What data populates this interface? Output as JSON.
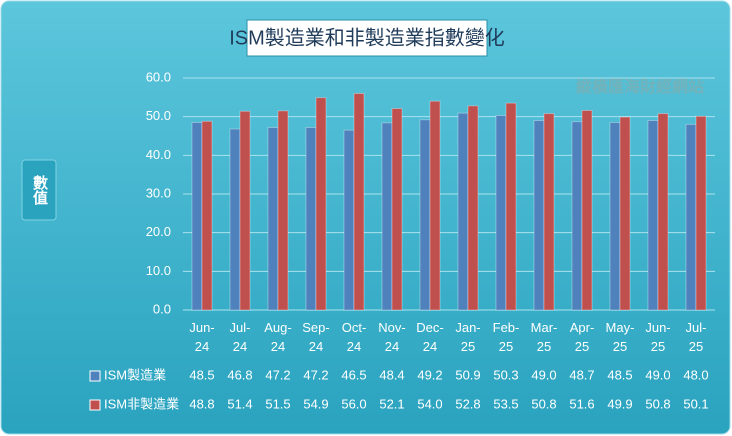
{
  "chart_data": {
    "type": "bar",
    "title": "ISM製造業和非製造業指數變化",
    "y_label": "數值",
    "watermark": "縱橫匯海財經網站",
    "categories": [
      "Jun-24",
      "Jul-24",
      "Aug-24",
      "Sep-24",
      "Oct-24",
      "Nov-24",
      "Dec-24",
      "Jan-25",
      "Feb-25",
      "Mar-25",
      "Apr-25",
      "May-25",
      "Jun-25",
      "Jul-25"
    ],
    "series": [
      {
        "name": "ISM製造業",
        "color": "#4f81bd",
        "values": [
          48.5,
          46.8,
          47.2,
          47.2,
          46.5,
          48.4,
          49.2,
          50.9,
          50.3,
          49.0,
          48.7,
          48.5,
          49.0,
          48.0
        ],
        "value_labels": [
          "48.5",
          "46.8",
          "47.2",
          "47.2",
          "46.5",
          "48.4",
          "49.2",
          "50.9",
          "50.3",
          "49.0",
          "48.7",
          "48.5",
          "49.0",
          "48.0"
        ]
      },
      {
        "name": "ISM非製造業",
        "color": "#c0504d",
        "values": [
          48.8,
          51.4,
          51.5,
          54.9,
          56.0,
          52.1,
          54.0,
          52.8,
          53.5,
          50.8,
          51.6,
          49.9,
          50.8,
          50.1
        ],
        "value_labels": [
          "48.8",
          "51.4",
          "51.5",
          "54.9",
          "56.0",
          "52.1",
          "54.0",
          "52.8",
          "53.5",
          "50.8",
          "51.6",
          "49.9",
          "50.8",
          "50.1"
        ]
      }
    ],
    "ylim": [
      0,
      60
    ],
    "yticks": [
      {
        "value": 0,
        "label": "0.0"
      },
      {
        "value": 10,
        "label": "10.0"
      },
      {
        "value": 20,
        "label": "20.0"
      },
      {
        "value": 30,
        "label": "30.0"
      },
      {
        "value": 40,
        "label": "40.0"
      },
      {
        "value": 50,
        "label": "50.0"
      },
      {
        "value": 60,
        "label": "60.0"
      }
    ],
    "grid": true
  }
}
